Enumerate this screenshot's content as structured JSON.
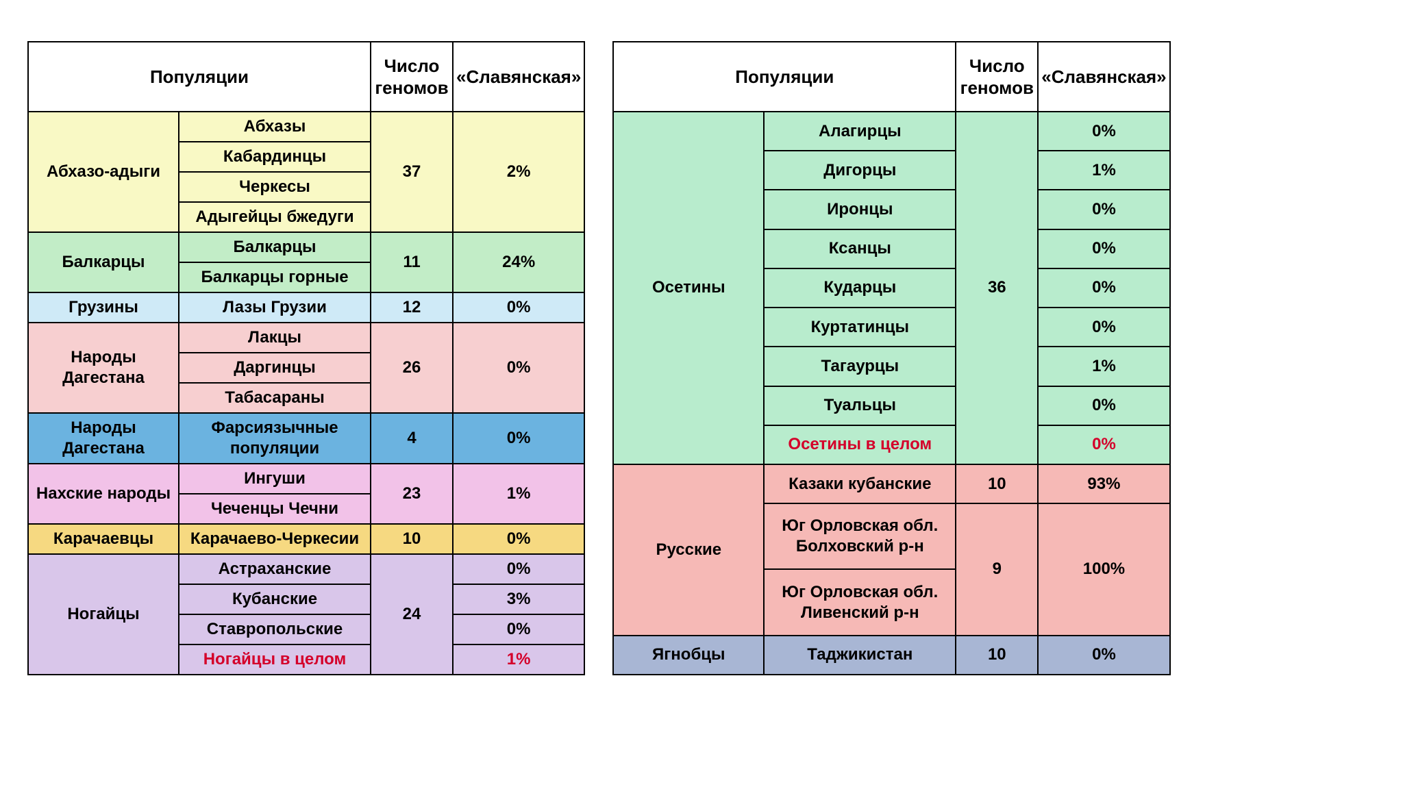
{
  "headers": {
    "populations": "Популяции",
    "genomes": "Число геномов",
    "slavic": "«Славянская»"
  },
  "colors": {
    "yellow": "#f9f9c5",
    "green": "#c2edc7",
    "ltblue": "#cfeaf7",
    "pink": "#f7cfd0",
    "blue": "#6bb3e0",
    "magenta": "#f2c2e8",
    "amber": "#f6d981",
    "lilac": "#d9c6ea",
    "mint": "#b8eccd",
    "salmon": "#f6b9b6",
    "slate": "#a8b6d4",
    "white": "#ffffff",
    "red_text": "#d4002a"
  },
  "left": {
    "groups": [
      {
        "label": "Абхазо-адыги",
        "color": "yellow",
        "genomes": "37",
        "slavic_group": "2%",
        "items": [
          {
            "label": "Абхазы"
          },
          {
            "label": "Кабардинцы"
          },
          {
            "label": "Черкесы"
          },
          {
            "label": "Адыгейцы бжедуги"
          }
        ]
      },
      {
        "label": "Балкарцы",
        "color": "green",
        "genomes": "11",
        "slavic_group": "24%",
        "items": [
          {
            "label": "Балкарцы"
          },
          {
            "label": "Балкарцы горные"
          }
        ]
      },
      {
        "label": "Грузины",
        "color": "ltblue",
        "genomes": "12",
        "slavic_group": "0%",
        "items": [
          {
            "label": "Лазы Грузии"
          }
        ]
      },
      {
        "label": "Народы Дагестана",
        "color": "pink",
        "genomes": "26",
        "slavic_group": "0%",
        "items": [
          {
            "label": "Лакцы"
          },
          {
            "label": "Даргинцы"
          },
          {
            "label": "Табасараны"
          }
        ]
      },
      {
        "label": "Народы Дагестана",
        "color": "blue",
        "genomes": "4",
        "slavic_group": "0%",
        "items": [
          {
            "label": "Фарсиязычные популяции"
          }
        ]
      },
      {
        "label": "Нахские народы",
        "color": "magenta",
        "genomes": "23",
        "slavic_group": "1%",
        "items": [
          {
            "label": "Ингуши"
          },
          {
            "label": "Чеченцы Чечни"
          }
        ]
      },
      {
        "label": "Карачаевцы",
        "color": "amber",
        "genomes": "10",
        "slavic_group": "0%",
        "items": [
          {
            "label": "Карачаево-Черкесии"
          }
        ]
      },
      {
        "label": "Ногайцы",
        "color": "lilac",
        "genomes": "24",
        "items": [
          {
            "label": "Астраханские",
            "slavic": "0%"
          },
          {
            "label": "Кубанские",
            "slavic": "3%"
          },
          {
            "label": "Ставропольские",
            "slavic": "0%"
          },
          {
            "label": "Ногайцы в целом",
            "slavic": "1%",
            "red": true
          }
        ]
      }
    ]
  },
  "right": {
    "groups": [
      {
        "label": "Осетины",
        "color": "mint",
        "genomes": "36",
        "items": [
          {
            "label": "Алагирцы",
            "slavic": "0%"
          },
          {
            "label": "Дигорцы",
            "slavic": "1%"
          },
          {
            "label": "Иронцы",
            "slavic": "0%"
          },
          {
            "label": "Ксанцы",
            "slavic": "0%"
          },
          {
            "label": "Кударцы",
            "slavic": "0%"
          },
          {
            "label": "Куртатинцы",
            "slavic": "0%"
          },
          {
            "label": "Тагаурцы",
            "slavic": "1%"
          },
          {
            "label": "Туальцы",
            "slavic": "0%"
          },
          {
            "label": "Осетины в целом",
            "slavic": "0%",
            "red": true
          }
        ]
      },
      {
        "label": "Русские",
        "color": "salmon",
        "subrows": [
          {
            "items": [
              {
                "label": "Казаки кубанские"
              }
            ],
            "genomes": "10",
            "slavic_group": "93%"
          },
          {
            "items": [
              {
                "label": "Юг Орловская обл. Болховский р-н"
              },
              {
                "label": "Юг Орловская обл. Ливенский р-н"
              }
            ],
            "genomes": "9",
            "slavic_group": "100%"
          }
        ]
      },
      {
        "label": "Ягнобцы",
        "color": "slate",
        "genomes": "10",
        "slavic_group": "0%",
        "items": [
          {
            "label": "Таджикистан"
          }
        ]
      }
    ]
  }
}
